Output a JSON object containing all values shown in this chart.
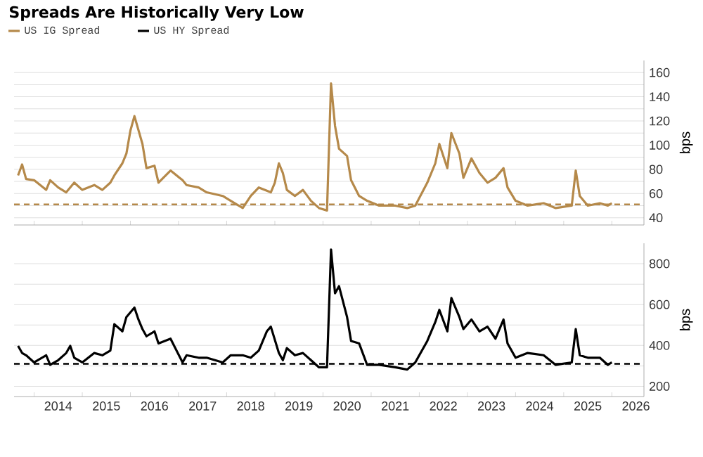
{
  "chart_data": [
    {
      "type": "line",
      "title": "Spreads Are Historically Very Low",
      "ylabel": "bps",
      "legend": "top left",
      "grid": "y",
      "tick_labels": "y",
      "xlim": [
        "2013-08",
        "2026-09"
      ],
      "xticks": [
        {
          "value": "2014-01",
          "label": null
        },
        {
          "value": "2015-01",
          "label": null
        },
        {
          "value": "2016-01",
          "label": null
        },
        {
          "value": "2017-01",
          "label": null
        },
        {
          "value": "2018-01",
          "label": null
        },
        {
          "value": "2019-01",
          "label": null
        },
        {
          "value": "2020-01",
          "label": null
        },
        {
          "value": "2021-01",
          "label": null
        },
        {
          "value": "2022-01",
          "label": null
        },
        {
          "value": "2023-01",
          "label": null
        },
        {
          "value": "2024-01",
          "label": null
        },
        {
          "value": "2025-01",
          "label": null
        },
        {
          "value": "2026-01",
          "label": null
        }
      ],
      "ylim": [
        34,
        170
      ],
      "yticks": [
        40,
        {
          "value": 50,
          "label": null
        },
        60,
        {
          "value": 70,
          "label": null
        },
        80,
        {
          "value": 90,
          "label": null
        },
        100,
        {
          "value": 110,
          "label": null
        },
        120,
        {
          "value": 130,
          "label": null
        },
        140,
        {
          "value": 150,
          "label": null
        },
        160
      ],
      "ref_lines": [
        {
          "axis": "y",
          "value": 51,
          "color": "#b5894a",
          "line_style": "dashed"
        }
      ],
      "series": [
        {
          "name": "US IG Spread",
          "color": "#b5894a",
          "x": [
            "2013-09",
            "2013-10",
            "2013-11",
            "2014-01",
            "2014-04",
            "2014-05",
            "2014-07",
            "2014-09",
            "2014-11",
            "2015-01",
            "2015-04",
            "2015-06",
            "2015-08",
            "2015-09",
            "2015-11",
            "2015-12",
            "2016-01",
            "2016-02",
            "2016-04",
            "2016-05",
            "2016-07",
            "2016-08",
            "2016-11",
            "2017-02",
            "2017-03",
            "2017-06",
            "2017-08",
            "2017-12",
            "2018-02",
            "2018-05",
            "2018-07",
            "2018-09",
            "2018-12",
            "2019-01",
            "2019-02",
            "2019-03",
            "2019-04",
            "2019-06",
            "2019-08",
            "2019-10",
            "2019-12",
            "2020-02",
            "2020-03",
            "2020-04",
            "2020-05",
            "2020-07",
            "2020-08",
            "2020-10",
            "2020-12",
            "2021-03",
            "2021-07",
            "2021-10",
            "2021-12",
            "2022-03",
            "2022-05",
            "2022-06",
            "2022-08",
            "2022-09",
            "2022-11",
            "2022-12",
            "2023-02",
            "2023-04",
            "2023-06",
            "2023-08",
            "2023-10",
            "2023-11",
            "2024-01",
            "2024-04",
            "2024-08",
            "2024-11",
            "2025-03",
            "2025-04",
            "2025-05",
            "2025-07",
            "2025-10",
            "2025-12",
            "2026-01"
          ],
          "values": [
            75,
            84,
            72,
            71,
            63,
            71,
            65,
            61,
            69,
            63,
            67,
            63,
            69,
            75,
            85,
            93,
            112,
            124,
            101,
            81,
            83,
            69,
            79,
            71,
            67,
            65,
            61,
            58,
            54,
            48,
            58,
            65,
            61,
            69,
            85,
            77,
            63,
            58,
            63,
            54,
            48,
            46,
            151,
            116,
            97,
            91,
            71,
            58,
            54,
            50,
            50,
            48,
            50,
            69,
            85,
            101,
            81,
            110,
            93,
            73,
            89,
            77,
            69,
            73,
            81,
            65,
            54,
            50,
            52,
            48,
            50,
            79,
            58,
            50,
            52,
            50,
            52
          ]
        }
      ]
    },
    {
      "type": "line",
      "ylabel": "bps",
      "legend": "top left",
      "grid": "y",
      "xlim": [
        "2013-08",
        "2026-09"
      ],
      "xticks": [
        {
          "value": "2014-01",
          "label": null
        },
        {
          "value": "2014-07",
          "label": "2014"
        },
        {
          "value": "2015-01",
          "label": null
        },
        {
          "value": "2015-07",
          "label": "2015"
        },
        {
          "value": "2016-01",
          "label": null
        },
        {
          "value": "2016-07",
          "label": "2016"
        },
        {
          "value": "2017-01",
          "label": null
        },
        {
          "value": "2017-07",
          "label": "2017"
        },
        {
          "value": "2018-01",
          "label": null
        },
        {
          "value": "2018-07",
          "label": "2018"
        },
        {
          "value": "2019-01",
          "label": null
        },
        {
          "value": "2019-07",
          "label": "2019"
        },
        {
          "value": "2020-01",
          "label": null
        },
        {
          "value": "2020-07",
          "label": "2020"
        },
        {
          "value": "2021-01",
          "label": null
        },
        {
          "value": "2021-07",
          "label": "2021"
        },
        {
          "value": "2022-01",
          "label": null
        },
        {
          "value": "2022-07",
          "label": "2022"
        },
        {
          "value": "2023-01",
          "label": null
        },
        {
          "value": "2023-07",
          "label": "2023"
        },
        {
          "value": "2024-01",
          "label": null
        },
        {
          "value": "2024-07",
          "label": "2024"
        },
        {
          "value": "2025-01",
          "label": null
        },
        {
          "value": "2025-07",
          "label": "2025"
        },
        {
          "value": "2026-01",
          "label": null
        },
        {
          "value": "2026-07",
          "label": "2026"
        }
      ],
      "ylim": [
        150,
        900
      ],
      "yticks": [
        200,
        {
          "value": 300,
          "label": null
        },
        400,
        {
          "value": 500,
          "label": null
        },
        600,
        {
          "value": 700,
          "label": null
        },
        800
      ],
      "ref_lines": [
        {
          "axis": "y",
          "value": 310,
          "color": "#000000",
          "line_style": "dashed"
        }
      ],
      "series": [
        {
          "name": "US HY Spread",
          "color": "#000000",
          "x": [
            "2013-09",
            "2013-10",
            "2013-11",
            "2014-01",
            "2014-04",
            "2014-05",
            "2014-07",
            "2014-09",
            "2014-10",
            "2014-11",
            "2015-01",
            "2015-04",
            "2015-06",
            "2015-08",
            "2015-09",
            "2015-11",
            "2015-12",
            "2016-02",
            "2016-03",
            "2016-04",
            "2016-05",
            "2016-07",
            "2016-08",
            "2016-11",
            "2017-02",
            "2017-03",
            "2017-06",
            "2017-08",
            "2017-12",
            "2018-02",
            "2018-05",
            "2018-07",
            "2018-09",
            "2018-11",
            "2018-12",
            "2019-02",
            "2019-03",
            "2019-04",
            "2019-06",
            "2019-08",
            "2019-10",
            "2019-12",
            "2020-02",
            "2020-03",
            "2020-04",
            "2020-05",
            "2020-07",
            "2020-08",
            "2020-10",
            "2020-12",
            "2021-03",
            "2021-07",
            "2021-10",
            "2021-12",
            "2022-03",
            "2022-05",
            "2022-06",
            "2022-08",
            "2022-09",
            "2022-11",
            "2022-12",
            "2023-02",
            "2023-04",
            "2023-06",
            "2023-08",
            "2023-10",
            "2023-11",
            "2024-01",
            "2024-04",
            "2024-08",
            "2024-11",
            "2025-03",
            "2025-04",
            "2025-05",
            "2025-07",
            "2025-10",
            "2025-12",
            "2026-01"
          ],
          "values": [
            398,
            363,
            352,
            317,
            352,
            305,
            328,
            363,
            398,
            340,
            317,
            363,
            352,
            375,
            504,
            469,
            539,
            585,
            527,
            480,
            445,
            469,
            410,
            433,
            317,
            352,
            340,
            340,
            317,
            352,
            352,
            340,
            375,
            469,
            492,
            363,
            328,
            387,
            352,
            363,
            328,
            293,
            293,
            870,
            655,
            690,
            539,
            422,
            410,
            305,
            305,
            293,
            282,
            317,
            422,
            515,
            574,
            469,
            632,
            539,
            480,
            527,
            469,
            492,
            433,
            527,
            410,
            340,
            363,
            352,
            305,
            317,
            480,
            352,
            340,
            340,
            305,
            317
          ]
        }
      ]
    }
  ]
}
